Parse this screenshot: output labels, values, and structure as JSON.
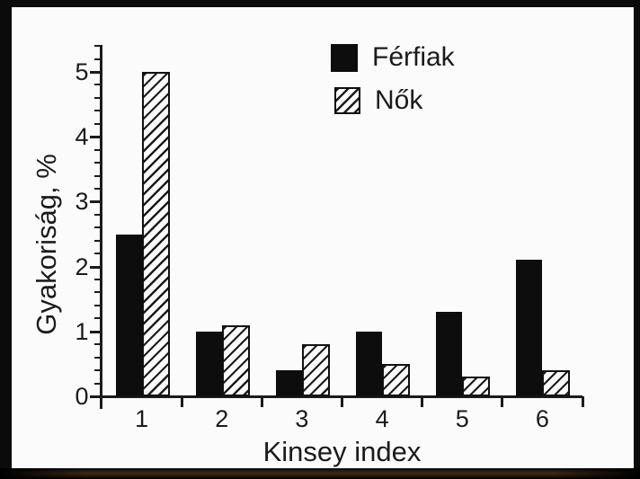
{
  "chart_data": {
    "type": "bar",
    "title": "",
    "categories": [
      "1",
      "2",
      "3",
      "4",
      "5",
      "6"
    ],
    "series": [
      {
        "name": "Férfiak",
        "fill": "solid-black",
        "values": [
          2.5,
          1.0,
          0.4,
          1.0,
          1.3,
          2.1
        ]
      },
      {
        "name": "Nők",
        "fill": "diagonal-hatch",
        "values": [
          5.0,
          1.1,
          0.8,
          0.5,
          0.3,
          0.4
        ]
      }
    ],
    "xlabel": "Kinsey index",
    "ylabel": "Gyakoriság, %",
    "ylim": [
      0,
      5.4
    ],
    "y_major_ticks": [
      0,
      1,
      2,
      3,
      4,
      5
    ],
    "y_minor_step": 0.2,
    "grid": false,
    "legend_position": "top-right"
  },
  "colors": {
    "paper": "#fbfbfb",
    "frame": "#0b0b0b",
    "ink": "#1b1b1b",
    "bar_black": "#0d0d0d",
    "hatch_line": "#1b1b1b",
    "bottom_band_tint": "#3d2a14"
  }
}
